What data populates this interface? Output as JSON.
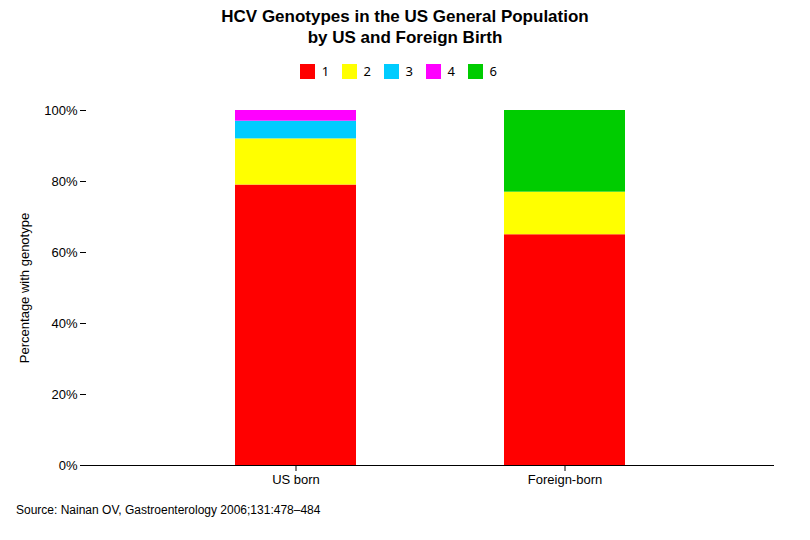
{
  "chart_data": {
    "type": "bar",
    "title": "HCV Genotypes in the US General Population\nby US and Foreign Birth",
    "categories": [
      "US born",
      "Foreign-born"
    ],
    "series": [
      {
        "name": "1",
        "color": "#FF0000",
        "values": [
          79,
          65
        ]
      },
      {
        "name": "2",
        "color": "#FFFF00",
        "values": [
          13,
          12
        ]
      },
      {
        "name": "3",
        "color": "#00CCFF",
        "values": [
          5,
          0
        ]
      },
      {
        "name": "4",
        "color": "#FF00FF",
        "values": [
          3,
          0
        ]
      },
      {
        "name": "6",
        "color": "#00CC00",
        "values": [
          0,
          23
        ]
      }
    ],
    "stacked": true,
    "ylabel": "Percentage with genotype",
    "ylim": [
      0,
      100
    ],
    "yticks": [
      {
        "value": 0,
        "label": "0%"
      },
      {
        "value": 20,
        "label": "20%"
      },
      {
        "value": 40,
        "label": "40%"
      },
      {
        "value": 60,
        "label": "60%"
      },
      {
        "value": 80,
        "label": "80%"
      },
      {
        "value": 100,
        "label": "100%"
      }
    ],
    "grid": false,
    "legend": "top",
    "annotations": [
      "Source: Nainan OV, Gastroenterology 2006;131:478–484"
    ]
  }
}
